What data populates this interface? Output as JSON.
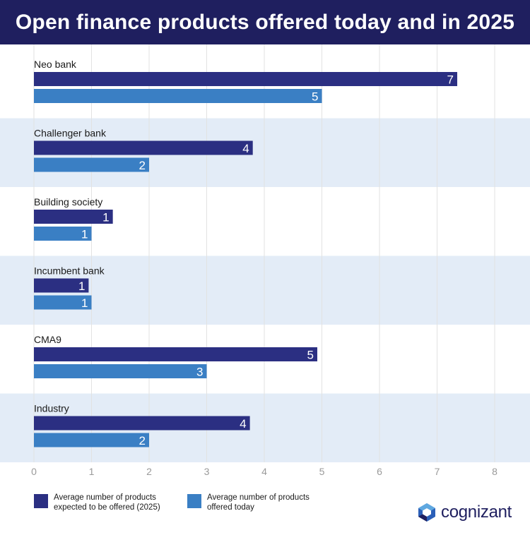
{
  "header": {
    "title": "Open finance products offered today and in 2025"
  },
  "colors": {
    "header_bg": "#1f1f5f",
    "series_2025": "#2b2f82",
    "series_today": "#3a7fc4",
    "band": "#e3ecf7"
  },
  "chart_data": {
    "type": "bar",
    "orientation": "horizontal",
    "title": "Open finance products offered today and in 2025",
    "categories": [
      "Neo bank",
      "Challenger bank",
      "Building society",
      "Incumbent bank",
      "CMA9",
      "Industry"
    ],
    "series": [
      {
        "name": "Average number of products expected to be offered (2025)",
        "values": [
          7.35,
          3.8,
          1.37,
          0.95,
          4.92,
          3.75
        ],
        "labels": [
          "7",
          "4",
          "1",
          "1",
          "5",
          "4"
        ]
      },
      {
        "name": "Average number of products offered today",
        "values": [
          5.0,
          2.0,
          1.0,
          1.0,
          3.0,
          2.0
        ],
        "labels": [
          "5",
          "2",
          "1",
          "1",
          "3",
          "2"
        ]
      }
    ],
    "xlim": [
      0,
      8
    ],
    "ticks": [
      "0",
      "1",
      "2",
      "3",
      "4",
      "5",
      "6",
      "7",
      "8"
    ],
    "grid": true,
    "legend_position": "bottom-left"
  },
  "legend": {
    "item_2025": "Average number of products expected to be offered (2025)",
    "item_today": "Average number of products offered today"
  },
  "logo": {
    "text": "cognizant",
    "icon": "cognizant-logo-icon"
  }
}
